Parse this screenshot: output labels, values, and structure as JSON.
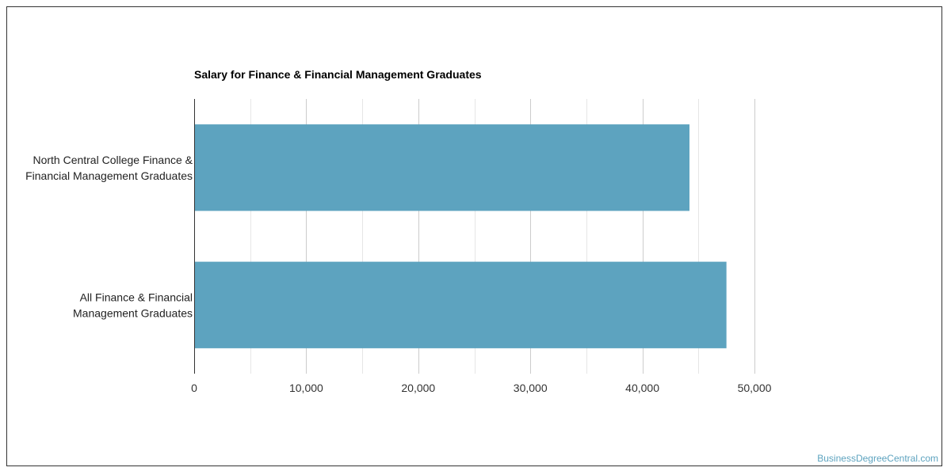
{
  "chart_data": {
    "type": "bar",
    "orientation": "horizontal",
    "title": "Salary for Finance & Financial Management Graduates",
    "categories": [
      [
        "North Central College Finance &",
        "Financial Management Graduates"
      ],
      [
        "All Finance & Financial",
        "Management Graduates"
      ]
    ],
    "values": [
      44200,
      47500
    ],
    "xlim": [
      0,
      50000
    ],
    "xticks": [
      "0",
      "10,000",
      "20,000",
      "30,000",
      "40,000",
      "50,000"
    ],
    "xlabel": "",
    "ylabel": "",
    "grid": true,
    "bar_color": "#5da3bf"
  },
  "watermark": {
    "text": "BusinessDegreeCentral.com",
    "color": "#5da3bf"
  }
}
